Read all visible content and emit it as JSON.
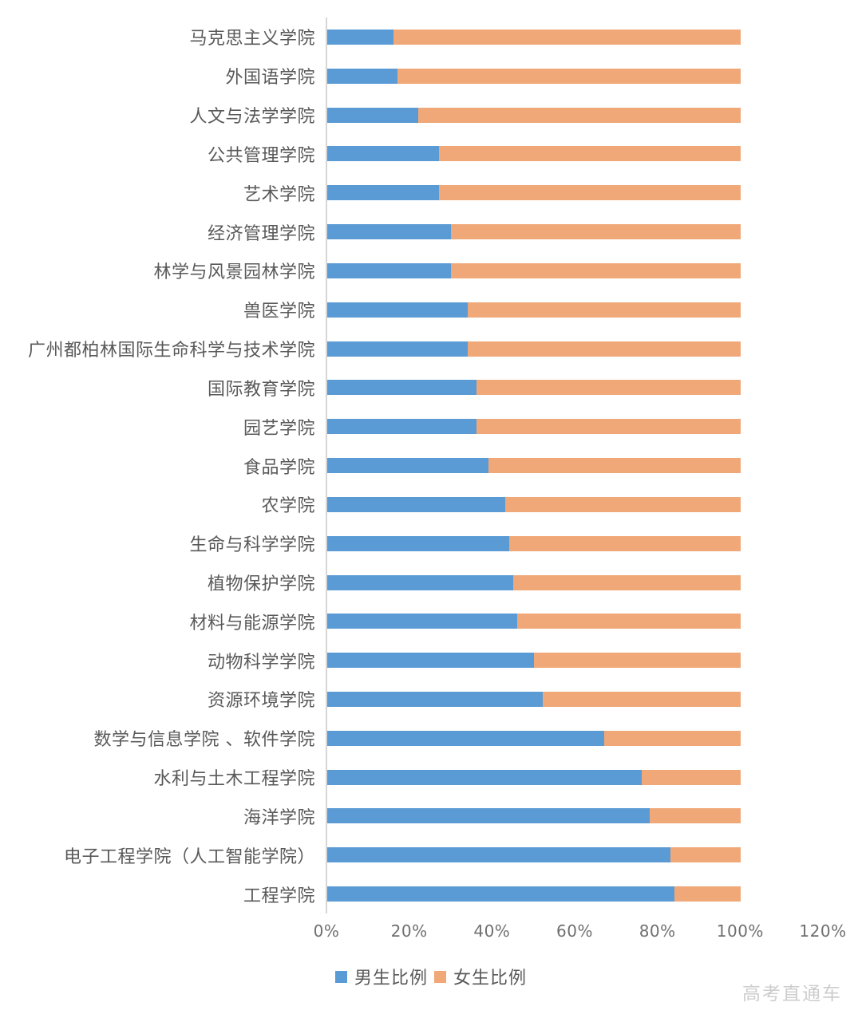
{
  "chart_data": {
    "type": "bar",
    "orientation": "horizontal",
    "stacked": true,
    "unit": "%",
    "categories": [
      "马克思主义学院",
      "外国语学院",
      "人文与法学学院",
      "公共管理学院",
      "艺术学院",
      "经济管理学院",
      "林学与风景园林学院",
      "兽医学院",
      "广州都柏林国际生命科学与技术学院",
      "国际教育学院",
      "园艺学院",
      "食品学院",
      "农学院",
      "生命与科学学院",
      "植物保护学院",
      "材料与能源学院",
      "动物科学学院",
      "资源环境学院",
      "数学与信息学院 、软件学院",
      "水利与土木工程学院",
      "海洋学院",
      "电子工程学院（人工智能学院）",
      "工程学院"
    ],
    "series": [
      {
        "name": "男生比例",
        "color": "#5B9BD5",
        "values": [
          16,
          17,
          22,
          27,
          27,
          30,
          30,
          34,
          34,
          36,
          36,
          39,
          43,
          44,
          45,
          46,
          50,
          52,
          67,
          76,
          78,
          83,
          84
        ]
      },
      {
        "name": "女生比例",
        "color": "#F0A878",
        "values": [
          84,
          83,
          78,
          73,
          73,
          70,
          70,
          66,
          66,
          64,
          64,
          61,
          57,
          56,
          55,
          54,
          50,
          48,
          33,
          24,
          22,
          17,
          16
        ]
      }
    ],
    "x_ticks": [
      "0%",
      "20%",
      "40%",
      "60%",
      "80%",
      "100%",
      "120%"
    ],
    "xlim": [
      0,
      120
    ],
    "grid": false,
    "legend_position": "bottom",
    "axis_line_color": "#d6d6d6"
  },
  "watermark": {
    "text": "高考直通车",
    "color": "#cdcdcd"
  }
}
